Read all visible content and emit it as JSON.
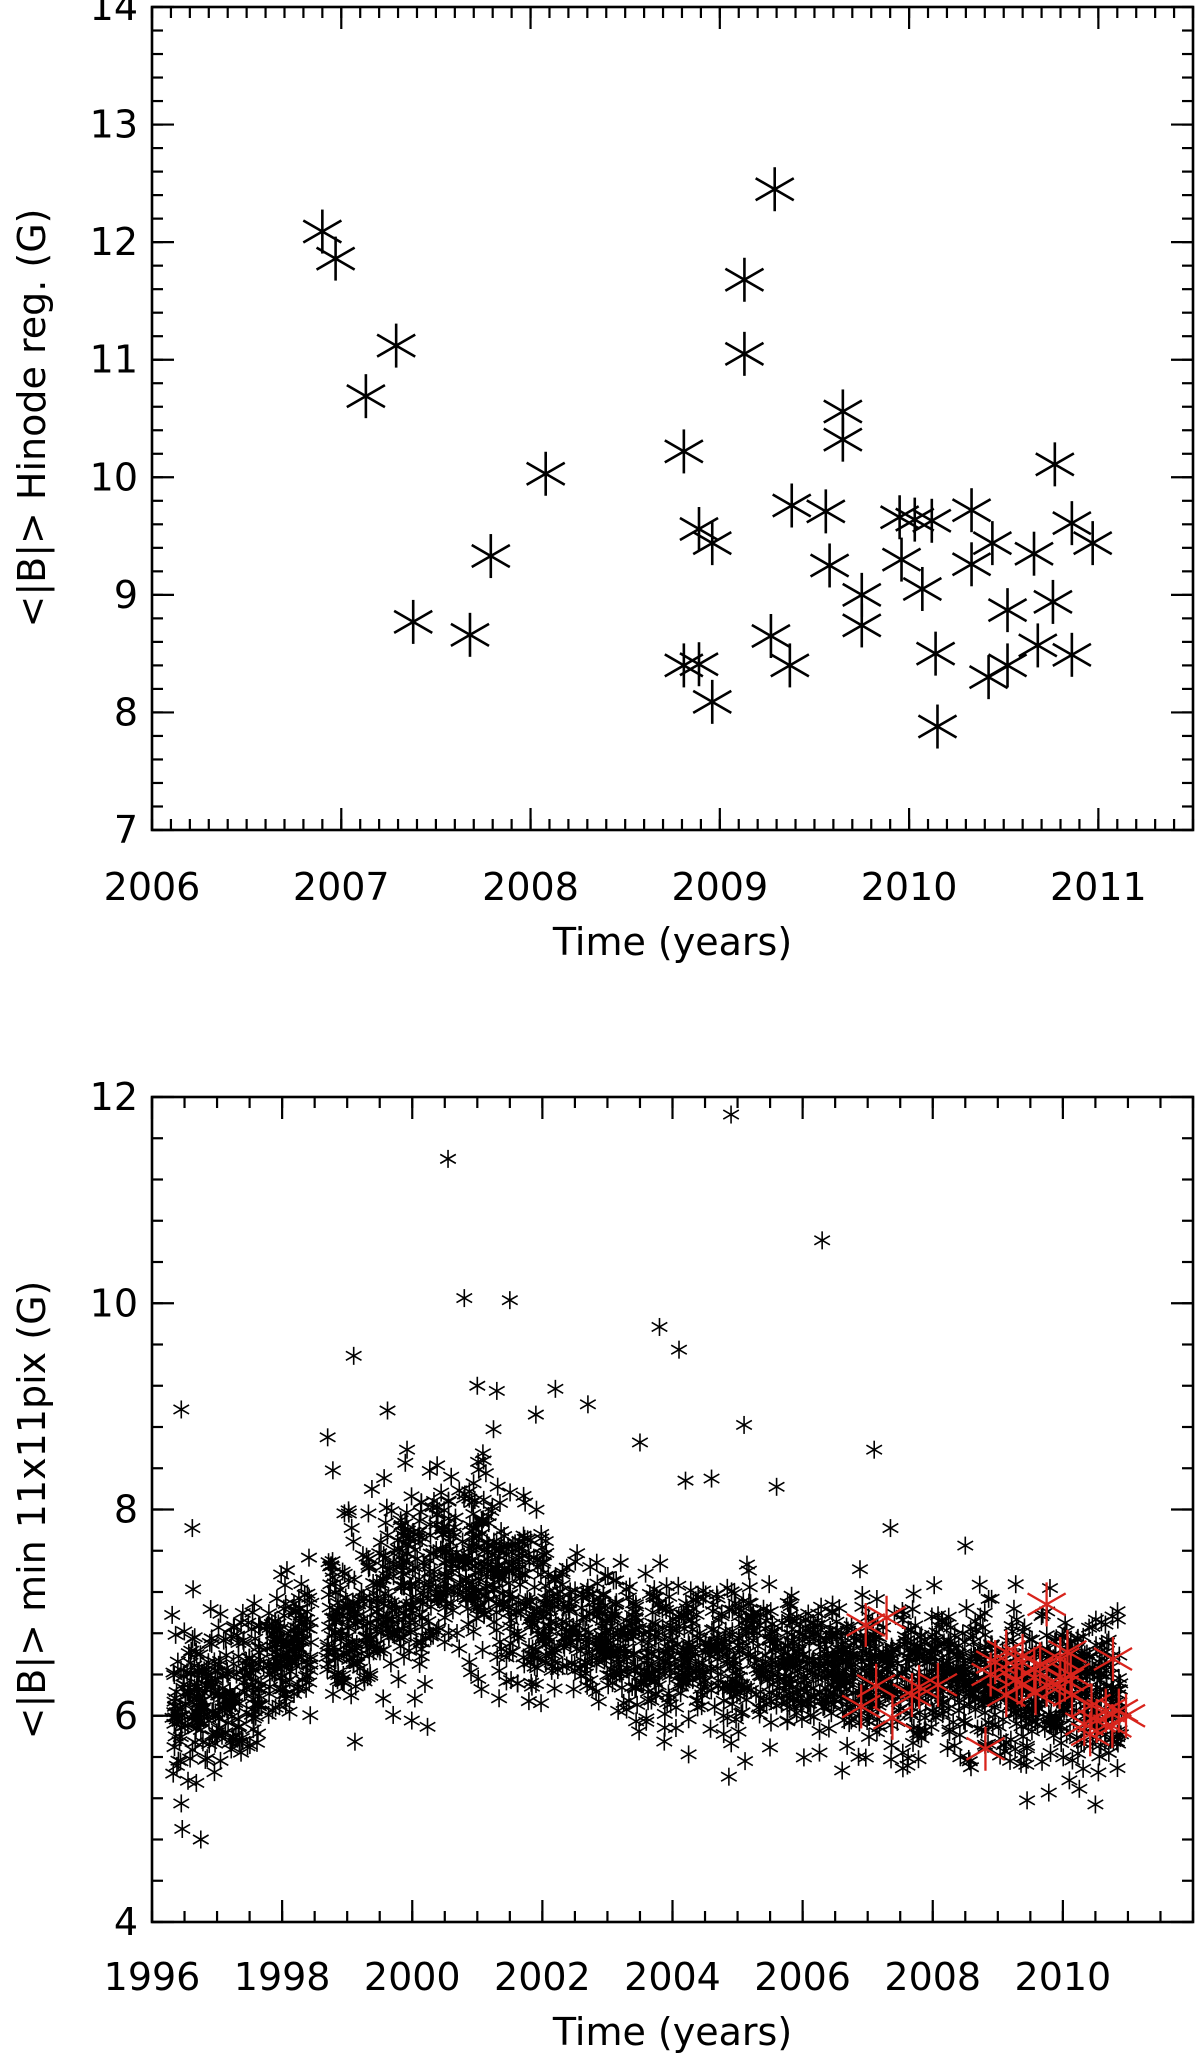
{
  "chart_data": [
    {
      "type": "scatter",
      "title": "",
      "xlabel": "Time (years)",
      "ylabel": "<|B|> Hinode reg. (G)",
      "xlim": [
        2006,
        2011.5
      ],
      "ylim": [
        7,
        14
      ],
      "x_ticks": [
        2006,
        2007,
        2008,
        2009,
        2010,
        2011
      ],
      "y_ticks": [
        7,
        8,
        9,
        10,
        11,
        12,
        13,
        14
      ],
      "marker": "asterisk",
      "color": "#000000",
      "grid": false,
      "series": [
        {
          "color": "#000000",
          "points": [
            [
              2006.9,
              12.09
            ],
            [
              2006.97,
              11.86
            ],
            [
              2007.13,
              10.69
            ],
            [
              2007.29,
              11.12
            ],
            [
              2007.38,
              8.77
            ],
            [
              2007.68,
              8.66
            ],
            [
              2007.79,
              9.33
            ],
            [
              2008.08,
              10.03
            ],
            [
              2008.81,
              10.22
            ],
            [
              2008.81,
              8.4
            ],
            [
              2008.89,
              8.41
            ],
            [
              2008.89,
              9.56
            ],
            [
              2008.96,
              9.44
            ],
            [
              2008.96,
              8.09
            ],
            [
              2009.13,
              11.68
            ],
            [
              2009.13,
              11.05
            ],
            [
              2009.27,
              8.65
            ],
            [
              2009.29,
              12.45
            ],
            [
              2009.37,
              8.4
            ],
            [
              2009.38,
              9.76
            ],
            [
              2009.56,
              9.71
            ],
            [
              2009.58,
              9.25
            ],
            [
              2009.65,
              10.56
            ],
            [
              2009.65,
              10.32
            ],
            [
              2009.75,
              9.0
            ],
            [
              2009.75,
              8.74
            ],
            [
              2009.95,
              9.66
            ],
            [
              2009.96,
              9.3
            ],
            [
              2010.03,
              9.64
            ],
            [
              2010.07,
              9.05
            ],
            [
              2010.12,
              9.63
            ],
            [
              2010.14,
              8.5
            ],
            [
              2010.15,
              7.88
            ],
            [
              2010.33,
              9.72
            ],
            [
              2010.33,
              9.26
            ],
            [
              2010.42,
              8.3
            ],
            [
              2010.44,
              9.44
            ],
            [
              2010.52,
              8.87
            ],
            [
              2010.52,
              8.4
            ],
            [
              2010.66,
              9.35
            ],
            [
              2010.68,
              8.57
            ],
            [
              2010.76,
              8.94
            ],
            [
              2010.77,
              10.11
            ],
            [
              2010.86,
              9.61
            ],
            [
              2010.86,
              8.49
            ],
            [
              2010.97,
              9.44
            ]
          ]
        }
      ]
    },
    {
      "type": "scatter",
      "title": "",
      "xlabel": "Time (years)",
      "ylabel": "<|B|> min 11x11pix (G)",
      "xlim": [
        1996,
        2012
      ],
      "ylim": [
        4,
        12
      ],
      "x_ticks": [
        1996,
        1998,
        2000,
        2002,
        2004,
        2006,
        2008,
        2010
      ],
      "y_ticks": [
        4,
        6,
        8,
        10,
        12
      ],
      "marker": "asterisk",
      "grid": false,
      "series": [
        {
          "color": "#000000",
          "trend": [
            [
              1996.3,
              6.05
            ],
            [
              1997.0,
              6.2
            ],
            [
              1997.6,
              6.35
            ],
            [
              1998.2,
              6.7
            ],
            [
              1999.0,
              6.9
            ],
            [
              1999.8,
              7.2
            ],
            [
              2000.4,
              7.4
            ],
            [
              2001.0,
              7.45
            ],
            [
              2001.6,
              7.1
            ],
            [
              2002.2,
              6.9
            ],
            [
              2003.0,
              6.75
            ],
            [
              2004.0,
              6.6
            ],
            [
              2005.0,
              6.55
            ],
            [
              2006.0,
              6.5
            ],
            [
              2007.0,
              6.4
            ],
            [
              2008.0,
              6.4
            ],
            [
              2009.0,
              6.3
            ],
            [
              2010.0,
              6.25
            ],
            [
              2010.9,
              6.2
            ]
          ],
          "outliers": [
            [
              1996.45,
              8.97
            ],
            [
              1996.62,
              7.82
            ],
            [
              1996.45,
              5.15
            ],
            [
              1996.75,
              4.8
            ],
            [
              1998.7,
              8.7
            ],
            [
              1998.78,
              8.38
            ],
            [
              1999.1,
              9.49
            ],
            [
              1999.62,
              8.96
            ],
            [
              1999.92,
              8.58
            ],
            [
              2000.55,
              11.4
            ],
            [
              2000.8,
              10.05
            ],
            [
              2001.5,
              10.03
            ],
            [
              2001.0,
              9.2
            ],
            [
              2001.3,
              9.15
            ],
            [
              2001.9,
              8.92
            ],
            [
              2002.2,
              9.17
            ],
            [
              2002.7,
              9.02
            ],
            [
              2003.5,
              8.65
            ],
            [
              2003.8,
              9.77
            ],
            [
              2004.1,
              9.55
            ],
            [
              2004.2,
              8.28
            ],
            [
              2004.6,
              8.3
            ],
            [
              2004.9,
              11.83
            ],
            [
              2005.1,
              8.82
            ],
            [
              2005.6,
              8.22
            ],
            [
              2006.3,
              10.61
            ],
            [
              2007.1,
              8.58
            ],
            [
              2007.35,
              7.82
            ],
            [
              2008.5,
              7.65
            ],
            [
              2009.45,
              5.18
            ],
            [
              2010.5,
              5.14
            ]
          ]
        },
        {
          "color": "#d8241c",
          "points": [
            [
              2006.9,
              6.09
            ],
            [
              2006.97,
              6.88
            ],
            [
              2007.13,
              6.29
            ],
            [
              2007.29,
              6.95
            ],
            [
              2007.38,
              5.98
            ],
            [
              2007.68,
              6.2
            ],
            [
              2007.79,
              6.28
            ],
            [
              2008.08,
              6.3
            ],
            [
              2008.81,
              5.68
            ],
            [
              2008.89,
              6.4
            ],
            [
              2008.96,
              6.52
            ],
            [
              2009.13,
              6.62
            ],
            [
              2009.13,
              6.2
            ],
            [
              2009.27,
              6.48
            ],
            [
              2009.29,
              6.35
            ],
            [
              2009.37,
              6.3
            ],
            [
              2009.38,
              6.58
            ],
            [
              2009.56,
              6.45
            ],
            [
              2009.58,
              6.22
            ],
            [
              2009.65,
              6.5
            ],
            [
              2009.75,
              7.08
            ],
            [
              2009.75,
              6.3
            ],
            [
              2009.95,
              6.28
            ],
            [
              2009.96,
              6.55
            ],
            [
              2010.03,
              6.35
            ],
            [
              2010.07,
              6.62
            ],
            [
              2010.12,
              6.4
            ],
            [
              2010.14,
              6.2
            ],
            [
              2010.33,
              5.92
            ],
            [
              2010.42,
              5.82
            ],
            [
              2010.44,
              6.1
            ],
            [
              2010.52,
              5.95
            ],
            [
              2010.66,
              6.05
            ],
            [
              2010.76,
              5.9
            ],
            [
              2010.77,
              6.55
            ],
            [
              2010.86,
              6.05
            ],
            [
              2010.97,
              6.0
            ]
          ]
        }
      ]
    }
  ]
}
